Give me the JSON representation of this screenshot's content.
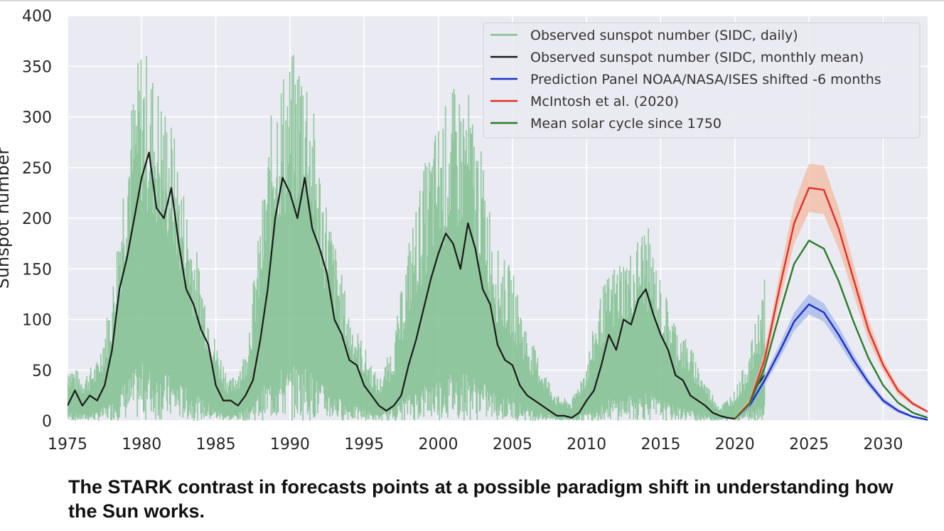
{
  "caption": "The STARK contrast in forecasts points at a possible paradigm shift in understanding how the Sun works.",
  "chart_data": {
    "type": "line",
    "title": "",
    "xlabel": "",
    "ylabel": "Sunspot number",
    "xlim": [
      1975,
      2033
    ],
    "ylim": [
      0,
      400
    ],
    "x_ticks": [
      1975,
      1980,
      1985,
      1990,
      1995,
      2000,
      2005,
      2010,
      2015,
      2020,
      2025,
      2030
    ],
    "y_ticks": [
      0,
      50,
      100,
      150,
      200,
      250,
      300,
      350,
      400
    ],
    "grid": true,
    "legend_position": "top-right",
    "background_color": "#eaeaf2",
    "series": [
      {
        "name": "Observed sunspot number (SIDC, daily)",
        "color": "#7fbf8e",
        "style": "spiky",
        "x": [
          1975,
          1976,
          1977,
          1978,
          1979,
          1980,
          1981,
          1982,
          1983,
          1984,
          1985,
          1986,
          1987,
          1988,
          1989,
          1990,
          1991,
          1992,
          1993,
          1994,
          1995,
          1996,
          1997,
          1998,
          1999,
          2000,
          2001,
          2002,
          2003,
          2004,
          2005,
          2006,
          2007,
          2008,
          2009,
          2010,
          2011,
          2012,
          2013,
          2014,
          2015,
          2016,
          2017,
          2018,
          2019,
          2020,
          2021,
          2022
        ],
        "y": [
          60,
          45,
          60,
          130,
          290,
          380,
          340,
          300,
          220,
          150,
          80,
          40,
          70,
          200,
          340,
          360,
          380,
          260,
          180,
          110,
          75,
          40,
          80,
          180,
          250,
          300,
          330,
          330,
          260,
          170,
          150,
          90,
          55,
          25,
          20,
          60,
          130,
          160,
          170,
          200,
          140,
          100,
          75,
          40,
          15,
          30,
          70,
          140
        ]
      },
      {
        "name": "Observed sunspot number (SIDC, monthly mean)",
        "color": "#1a1a1a",
        "x": [
          1975,
          1975.5,
          1976,
          1976.5,
          1977,
          1977.5,
          1978,
          1978.5,
          1979,
          1979.5,
          1980,
          1980.5,
          1981,
          1981.5,
          1982,
          1982.5,
          1983,
          1983.5,
          1984,
          1984.5,
          1985,
          1985.5,
          1986,
          1986.5,
          1987,
          1987.5,
          1988,
          1988.5,
          1989,
          1989.5,
          1990,
          1990.5,
          1991,
          1991.5,
          1992,
          1992.5,
          1993,
          1993.5,
          1994,
          1994.5,
          1995,
          1995.5,
          1996,
          1996.5,
          1997,
          1997.5,
          1998,
          1998.5,
          1999,
          1999.5,
          2000,
          2000.5,
          2001,
          2001.5,
          2002,
          2002.5,
          2003,
          2003.5,
          2004,
          2004.5,
          2005,
          2005.5,
          2006,
          2006.5,
          2007,
          2007.5,
          2008,
          2008.5,
          2009,
          2009.5,
          2010,
          2010.5,
          2011,
          2011.5,
          2012,
          2012.5,
          2013,
          2013.5,
          2014,
          2014.5,
          2015,
          2015.5,
          2016,
          2016.5,
          2017,
          2017.5,
          2018,
          2018.5,
          2019,
          2019.5,
          2020,
          2020.5,
          2021,
          2021.5,
          2022
        ],
        "y": [
          15,
          30,
          15,
          25,
          20,
          35,
          70,
          130,
          160,
          200,
          240,
          265,
          210,
          200,
          230,
          175,
          130,
          115,
          90,
          75,
          35,
          20,
          20,
          15,
          25,
          40,
          80,
          130,
          200,
          240,
          225,
          200,
          240,
          190,
          170,
          145,
          100,
          85,
          60,
          55,
          35,
          25,
          15,
          10,
          15,
          25,
          55,
          80,
          110,
          140,
          165,
          185,
          175,
          150,
          195,
          170,
          130,
          115,
          75,
          60,
          55,
          35,
          25,
          20,
          15,
          10,
          5,
          5,
          3,
          8,
          20,
          30,
          55,
          85,
          70,
          100,
          95,
          120,
          130,
          105,
          85,
          70,
          45,
          40,
          25,
          20,
          15,
          8,
          5,
          3,
          2,
          8,
          15,
          35,
          45
        ]
      },
      {
        "name": "Prediction Panel NOAA/NASA/ISES shifted -6 months",
        "color": "#1c2ec8",
        "band_color": "#9db3ea",
        "x": [
          2020,
          2021,
          2022,
          2023,
          2024,
          2025,
          2026,
          2027,
          2028,
          2029,
          2030,
          2031,
          2032,
          2033
        ],
        "y": [
          2,
          15,
          40,
          68,
          98,
          115,
          107,
          85,
          60,
          38,
          20,
          10,
          4,
          1
        ],
        "band": [
          2,
          3,
          5,
          7,
          9,
          10,
          9,
          8,
          6,
          4,
          3,
          2,
          1,
          1
        ]
      },
      {
        "name": "McIntosh et al. (2020)",
        "color": "#e0302a",
        "band_color": "#f3b79a",
        "x": [
          2020,
          2021,
          2022,
          2023,
          2024,
          2025,
          2026,
          2027,
          2028,
          2029,
          2030,
          2031,
          2032,
          2033
        ],
        "y": [
          2,
          18,
          60,
          130,
          195,
          230,
          228,
          190,
          140,
          90,
          55,
          30,
          17,
          9
        ],
        "band": [
          2,
          4,
          8,
          14,
          20,
          24,
          24,
          20,
          15,
          10,
          6,
          4,
          2,
          1
        ]
      },
      {
        "name": "Mean solar cycle since 1750",
        "color": "#2a7d2a",
        "x": [
          2020,
          2021,
          2022,
          2023,
          2024,
          2025,
          2026,
          2027,
          2028,
          2029,
          2030,
          2031,
          2032,
          2033
        ],
        "y": [
          2,
          17,
          52,
          105,
          155,
          178,
          170,
          138,
          98,
          62,
          35,
          18,
          8,
          3
        ]
      }
    ]
  }
}
